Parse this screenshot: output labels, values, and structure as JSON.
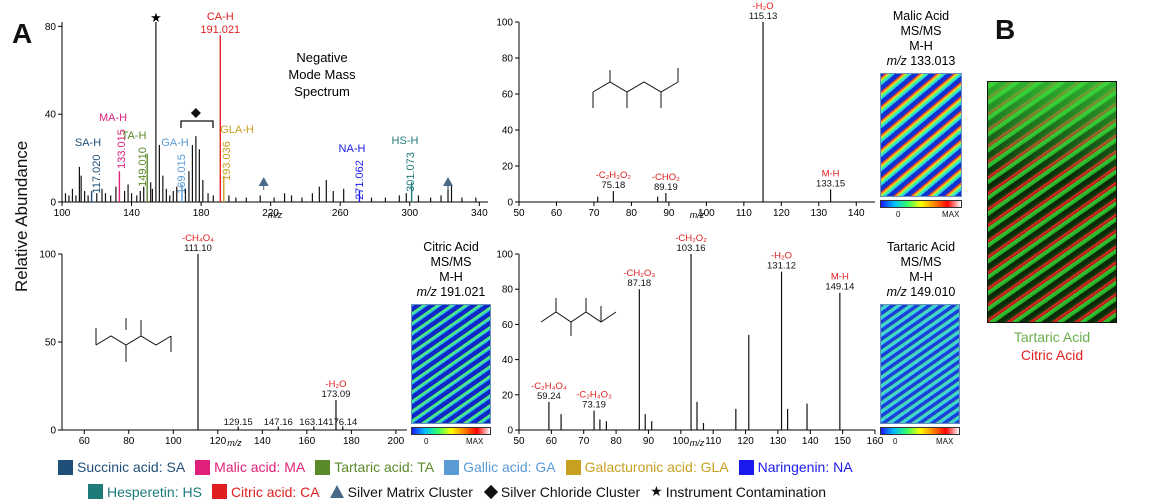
{
  "figure": {
    "panel_a": "A",
    "panel_b": "B",
    "ylabel": "Relative Abundance",
    "xlabel": "m/z",
    "colorbar_min": "0",
    "colorbar_max": "MAX",
    "b_label_1": "Tartaric Acid",
    "b_label_2": "Citric Acid",
    "b_label_1_color": "#6ab04c",
    "b_label_2_color": "#e02020"
  },
  "chart_data": [
    {
      "type": "bar",
      "name": "negative-mode",
      "title_lines": [
        "Negative",
        "Mode Mass",
        "Spectrum"
      ],
      "xlim": [
        100,
        345
      ],
      "ylim": [
        0,
        82
      ],
      "xticks": [
        100,
        140,
        180,
        220,
        260,
        300,
        340
      ],
      "yticks": [
        0,
        40,
        80
      ],
      "peaks": [
        {
          "x": 102,
          "y": 4
        },
        {
          "x": 104,
          "y": 3
        },
        {
          "x": 106,
          "y": 6
        },
        {
          "x": 108,
          "y": 3
        },
        {
          "x": 110,
          "y": 16
        },
        {
          "x": 111,
          "y": 12
        },
        {
          "x": 113,
          "y": 5
        },
        {
          "x": 115,
          "y": 3
        },
        {
          "x": 117.02,
          "y": 5,
          "color": "#1f4e79"
        },
        {
          "x": 120,
          "y": 4
        },
        {
          "x": 123,
          "y": 6
        },
        {
          "x": 125,
          "y": 4
        },
        {
          "x": 128,
          "y": 3
        },
        {
          "x": 131,
          "y": 7
        },
        {
          "x": 133.015,
          "y": 14,
          "color": "#e0207a"
        },
        {
          "x": 136,
          "y": 5
        },
        {
          "x": 138,
          "y": 8
        },
        {
          "x": 140,
          "y": 4
        },
        {
          "x": 143,
          "y": 3
        },
        {
          "x": 145,
          "y": 5
        },
        {
          "x": 147,
          "y": 7
        },
        {
          "x": 149.01,
          "y": 22,
          "color": "#5a8a2a"
        },
        {
          "x": 151,
          "y": 9
        },
        {
          "x": 152,
          "y": 6
        },
        {
          "x": 154,
          "y": 82
        },
        {
          "x": 156,
          "y": 26
        },
        {
          "x": 158,
          "y": 12
        },
        {
          "x": 160,
          "y": 6
        },
        {
          "x": 162,
          "y": 3
        },
        {
          "x": 164,
          "y": 5
        },
        {
          "x": 166,
          "y": 7
        },
        {
          "x": 169.015,
          "y": 8,
          "color": "#5b9bd5"
        },
        {
          "x": 171,
          "y": 6
        },
        {
          "x": 173,
          "y": 14
        },
        {
          "x": 175,
          "y": 26
        },
        {
          "x": 177,
          "y": 30
        },
        {
          "x": 179,
          "y": 24
        },
        {
          "x": 181,
          "y": 10
        },
        {
          "x": 184,
          "y": 4
        },
        {
          "x": 187,
          "y": 3
        },
        {
          "x": 191.021,
          "y": 76,
          "color": "#e02020"
        },
        {
          "x": 193.036,
          "y": 12,
          "color": "#c8a020"
        },
        {
          "x": 196,
          "y": 3
        },
        {
          "x": 200,
          "y": 2
        },
        {
          "x": 206,
          "y": 2
        },
        {
          "x": 214,
          "y": 3
        },
        {
          "x": 222,
          "y": 2
        },
        {
          "x": 228,
          "y": 4
        },
        {
          "x": 232,
          "y": 3
        },
        {
          "x": 238,
          "y": 2
        },
        {
          "x": 244,
          "y": 4
        },
        {
          "x": 248,
          "y": 7
        },
        {
          "x": 252,
          "y": 10
        },
        {
          "x": 256,
          "y": 5
        },
        {
          "x": 262,
          "y": 6
        },
        {
          "x": 271.062,
          "y": 5,
          "color": "#1a1aee"
        },
        {
          "x": 278,
          "y": 2
        },
        {
          "x": 286,
          "y": 2
        },
        {
          "x": 294,
          "y": 3
        },
        {
          "x": 298,
          "y": 4
        },
        {
          "x": 301.073,
          "y": 9,
          "color": "#1f7a7a"
        },
        {
          "x": 305,
          "y": 3
        },
        {
          "x": 312,
          "y": 2
        },
        {
          "x": 318,
          "y": 3
        },
        {
          "x": 322,
          "y": 10
        },
        {
          "x": 324,
          "y": 8
        },
        {
          "x": 330,
          "y": 2
        },
        {
          "x": 338,
          "y": 2
        }
      ],
      "labels": [
        {
          "name": "SA-H",
          "mz": "117.020",
          "x": 117.02,
          "color": "#1f4e79"
        },
        {
          "name": "MA-H",
          "mz": "133.015",
          "x": 133.015,
          "color": "#e0207a"
        },
        {
          "name": "TA-H",
          "mz": "149.010",
          "x": 149.01,
          "color": "#5a8a2a"
        },
        {
          "name": "GA-H",
          "mz": "169.015",
          "x": 169.015,
          "color": "#5b9bd5"
        },
        {
          "name": "GLA-H",
          "mz": "193.036",
          "x": 193.036,
          "color": "#c8a020"
        },
        {
          "name": "NA-H",
          "mz": "271.062",
          "x": 271.062,
          "color": "#1a1aee"
        },
        {
          "name": "HS-H",
          "mz": "301.073",
          "x": 301.073,
          "color": "#1f7a7a"
        },
        {
          "name": "CA-H",
          "mz": "191.021",
          "x": 191.021,
          "color": "#e02020"
        }
      ],
      "markers": [
        {
          "symbol": "star",
          "x": 154
        },
        {
          "symbol": "diamond",
          "x": 177
        },
        {
          "symbol": "triangle",
          "x": 216
        },
        {
          "symbol": "triangle",
          "x": 322
        }
      ]
    },
    {
      "type": "bar",
      "name": "malic",
      "title_lines": [
        "Malic Acid",
        "MS/MS",
        "M-H",
        "m/z 133.013"
      ],
      "xlim": [
        50,
        145
      ],
      "ylim": [
        0,
        100
      ],
      "xticks": [
        50,
        60,
        70,
        80,
        90,
        100,
        110,
        120,
        130,
        140
      ],
      "yticks": [
        0,
        20,
        40,
        60,
        80,
        100
      ],
      "peaks": [
        {
          "x": 71.0,
          "y": 3
        },
        {
          "x": 75.18,
          "y": 6
        },
        {
          "x": 87.0,
          "y": 3
        },
        {
          "x": 89.19,
          "y": 5
        },
        {
          "x": 115.13,
          "y": 100
        },
        {
          "x": 133.15,
          "y": 7
        }
      ],
      "labels": [
        {
          "top": "-H₂O",
          "val": "115.13",
          "x": 115.13
        },
        {
          "top": "-C₂H₃O₂",
          "val": "75.18",
          "x": 75.18
        },
        {
          "top": "-CHO₂",
          "val": "89.19",
          "x": 89.19
        },
        {
          "top": "M-H",
          "val": "133.15",
          "x": 133.15
        }
      ]
    },
    {
      "type": "bar",
      "name": "citric",
      "title_lines": [
        "Citric Acid",
        "MS/MS",
        "M-H",
        "m/z 191.021"
      ],
      "xlim": [
        50,
        205
      ],
      "ylim": [
        0,
        100
      ],
      "xticks": [
        60,
        80,
        100,
        120,
        140,
        160,
        180,
        200
      ],
      "yticks": [
        0,
        50,
        100
      ],
      "peaks": [
        {
          "x": 111.1,
          "y": 100
        },
        {
          "x": 129.15,
          "y": 2
        },
        {
          "x": 147.16,
          "y": 2
        },
        {
          "x": 163.14,
          "y": 2
        },
        {
          "x": 173.09,
          "y": 17
        },
        {
          "x": 176.14,
          "y": 2
        }
      ],
      "labels": [
        {
          "top": "-CH₄O₄",
          "val": "111.10",
          "x": 111.1
        },
        {
          "top": "-H₂O",
          "val": "173.09",
          "x": 173.09
        },
        {
          "top": "",
          "val": "129.15",
          "x": 129.15
        },
        {
          "top": "",
          "val": "147.16",
          "x": 147.16
        },
        {
          "top": "",
          "val": "163.14",
          "x": 163.14
        },
        {
          "top": "",
          "val": "176.14",
          "x": 176.14
        }
      ]
    },
    {
      "type": "bar",
      "name": "tartaric",
      "title_lines": [
        "Tartaric Acid",
        "MS/MS",
        "M-H",
        "m/z 149.010"
      ],
      "xlim": [
        50,
        160
      ],
      "ylim": [
        0,
        100
      ],
      "xticks": [
        50,
        60,
        70,
        80,
        90,
        100,
        110,
        120,
        130,
        140,
        150,
        160
      ],
      "yticks": [
        0,
        20,
        40,
        60,
        80,
        100
      ],
      "peaks": [
        {
          "x": 59.24,
          "y": 16
        },
        {
          "x": 63.0,
          "y": 9
        },
        {
          "x": 73.19,
          "y": 11
        },
        {
          "x": 75.0,
          "y": 6
        },
        {
          "x": 77.0,
          "y": 5
        },
        {
          "x": 87.18,
          "y": 80
        },
        {
          "x": 89.0,
          "y": 9
        },
        {
          "x": 91.0,
          "y": 5
        },
        {
          "x": 103.16,
          "y": 100
        },
        {
          "x": 105.0,
          "y": 16
        },
        {
          "x": 107.0,
          "y": 4
        },
        {
          "x": 117.0,
          "y": 12
        },
        {
          "x": 121.0,
          "y": 54
        },
        {
          "x": 131.12,
          "y": 90
        },
        {
          "x": 133.0,
          "y": 12
        },
        {
          "x": 139.0,
          "y": 15
        },
        {
          "x": 149.14,
          "y": 78
        }
      ],
      "labels": [
        {
          "top": "-CH₂O₂",
          "val": "103.16",
          "x": 103.16
        },
        {
          "top": "-CH₂O₃",
          "val": "87.18",
          "x": 87.18
        },
        {
          "top": "-H₂O",
          "val": "131.12",
          "x": 131.12
        },
        {
          "top": "M-H",
          "val": "149.14",
          "x": 149.14
        },
        {
          "top": "-C₂H₄O₄",
          "val": "59.24",
          "x": 59.24
        },
        {
          "top": "-C₂H₄O₃",
          "val": "73.19",
          "x": 73.19
        }
      ]
    }
  ],
  "legend": {
    "row1": [
      {
        "label": "Succinic acid: SA",
        "color": "#1f4e79",
        "text_color": "#1f4e79"
      },
      {
        "label": "Malic acid: MA",
        "color": "#e0207a",
        "text_color": "#e0207a"
      },
      {
        "label": "Tartaric acid: TA",
        "color": "#5a8a2a",
        "text_color": "#5a8a2a"
      },
      {
        "label": "Gallic acid: GA",
        "color": "#5b9bd5",
        "text_color": "#5b9bd5"
      },
      {
        "label": "Galacturonic acid: GLA",
        "color": "#c8a020",
        "text_color": "#c8a020"
      },
      {
        "label": "Naringenin: NA",
        "color": "#1a1aee",
        "text_color": "#1a1aee"
      }
    ],
    "row2": [
      {
        "label": "Hesperetin: HS",
        "color": "#1f7a7a",
        "text_color": "#1f7a7a"
      },
      {
        "label": "Citric acid: CA",
        "color": "#e02020",
        "text_color": "#e02020"
      },
      {
        "label": "Silver Matrix Cluster",
        "symbol": "triangle"
      },
      {
        "label": "Silver Chloride Cluster",
        "symbol": "diamond"
      },
      {
        "label": "Instrument Contamination",
        "symbol": "star"
      }
    ]
  }
}
